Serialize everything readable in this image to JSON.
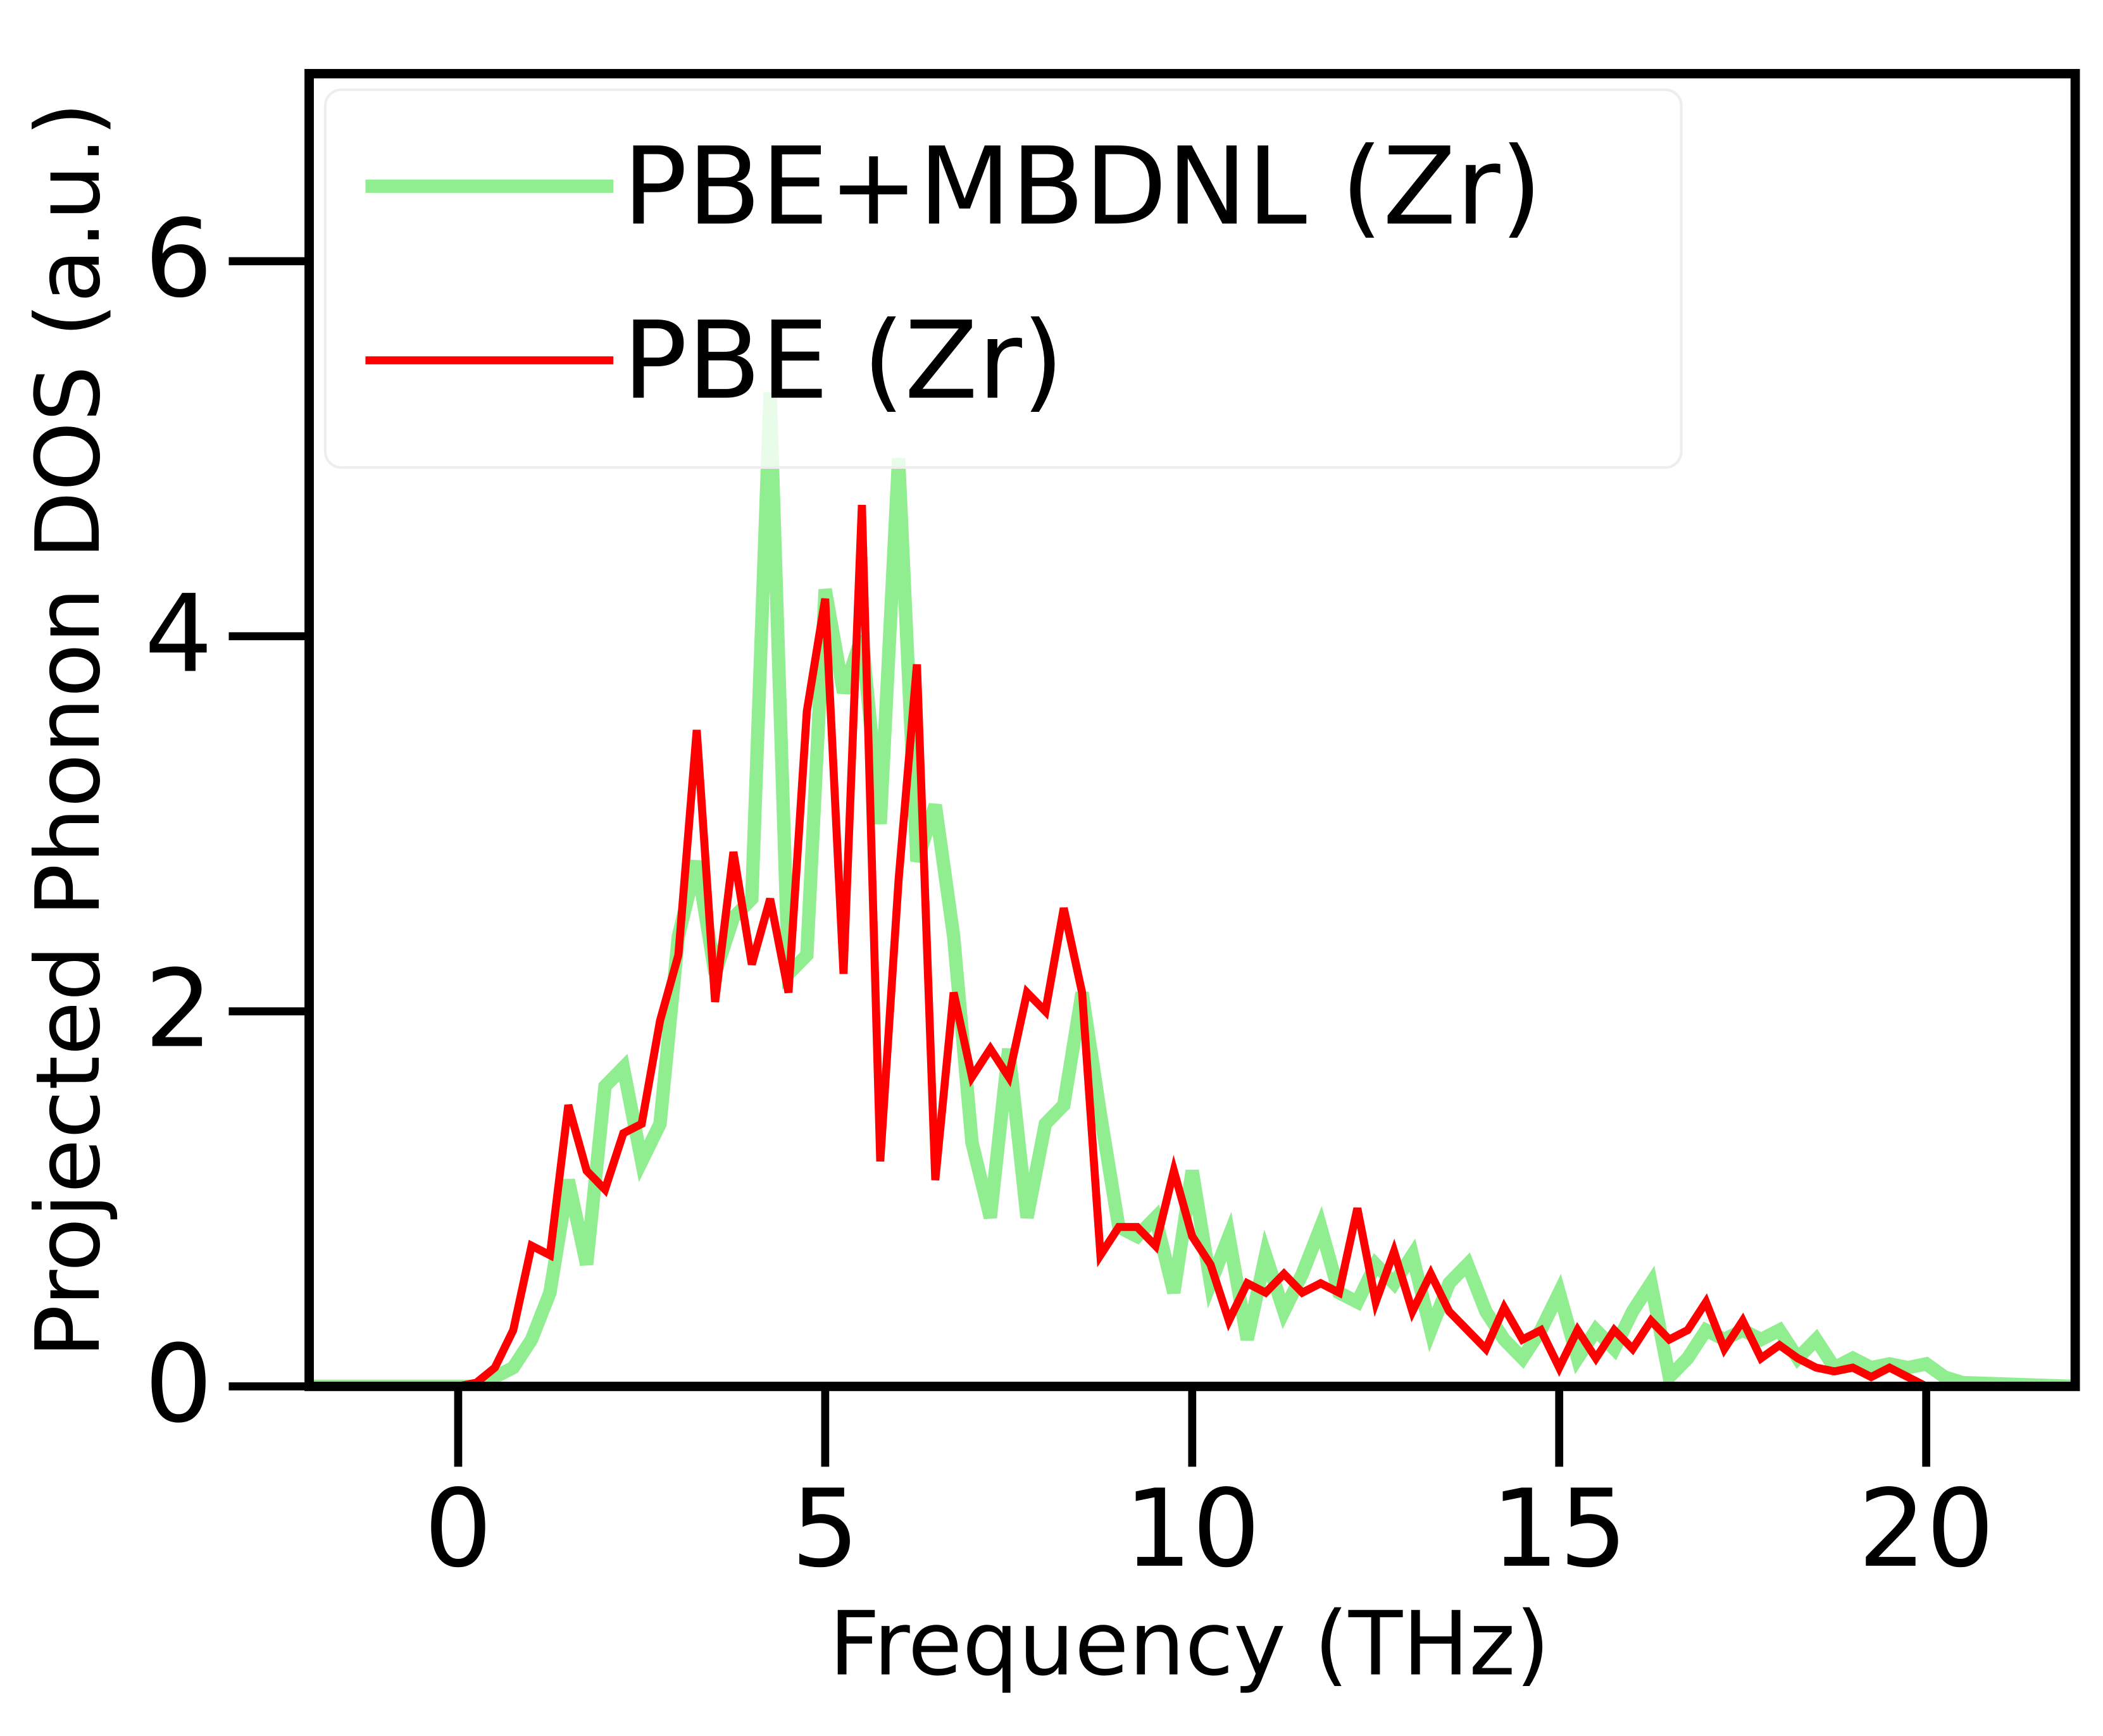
{
  "chart_data": {
    "type": "line",
    "xlabel": "Frequency (THz)",
    "ylabel": "Projected Phonon DOS (a.u.)",
    "xlim": [
      -2.03,
      22.03
    ],
    "ylim": [
      0,
      7
    ],
    "xticks": [
      0,
      5,
      10,
      15,
      20
    ],
    "yticks": [
      0,
      2,
      4,
      6
    ],
    "legend": "upper left",
    "x": [
      -2,
      0,
      0.25,
      0.5,
      0.75,
      1,
      1.25,
      1.5,
      1.75,
      2,
      2.25,
      2.5,
      2.75,
      3,
      3.25,
      3.5,
      3.75,
      4,
      4.25,
      4.5,
      4.75,
      5,
      5.25,
      5.5,
      5.75,
      6,
      6.25,
      6.5,
      6.75,
      7,
      7.25,
      7.5,
      7.75,
      8,
      8.25,
      8.5,
      8.75,
      9,
      9.25,
      9.5,
      9.75,
      10,
      10.25,
      10.5,
      10.75,
      11,
      11.25,
      11.5,
      11.75,
      12,
      12.25,
      12.5,
      12.75,
      13,
      13.25,
      13.5,
      13.75,
      14,
      14.25,
      14.5,
      14.75,
      15,
      15.25,
      15.5,
      15.75,
      16,
      16.25,
      16.5,
      16.75,
      17,
      17.25,
      17.5,
      17.75,
      18,
      18.25,
      18.5,
      18.75,
      19,
      19.25,
      19.5,
      19.75,
      20,
      20.25,
      20.5,
      22
    ],
    "series": [
      {
        "name": "PBE+MBDNL (Zr)",
        "color": "#90ee90",
        "width": 10,
        "values": [
          0,
          0,
          0,
          0.05,
          0.1,
          0.25,
          0.5,
          1.1,
          0.65,
          1.6,
          1.7,
          1.2,
          1.4,
          2.4,
          2.8,
          2.2,
          2.5,
          2.6,
          5.3,
          2.2,
          2.3,
          4.25,
          3.7,
          4.0,
          3.0,
          4.95,
          2.8,
          3.1,
          2.4,
          1.3,
          0.9,
          1.8,
          0.9,
          1.4,
          1.5,
          2.1,
          1.45,
          0.85,
          0.8,
          0.9,
          0.5,
          1.15,
          0.55,
          0.8,
          0.25,
          0.7,
          0.4,
          0.6,
          0.85,
          0.5,
          0.45,
          0.65,
          0.55,
          0.7,
          0.3,
          0.55,
          0.65,
          0.4,
          0.25,
          0.15,
          0.3,
          0.5,
          0.15,
          0.3,
          0.2,
          0.4,
          0.55,
          0.05,
          0.15,
          0.3,
          0.25,
          0.3,
          0.25,
          0.3,
          0.15,
          0.25,
          0.1,
          0.15,
          0.1,
          0.12,
          0.1,
          0.12,
          0.05,
          0.02,
          0
        ]
      },
      {
        "name": "PBE (Zr)",
        "color": "#ff0000",
        "width": 6,
        "values": [
          0,
          0,
          0.02,
          0.1,
          0.3,
          0.75,
          0.7,
          1.5,
          1.15,
          1.05,
          1.35,
          1.4,
          1.95,
          2.3,
          3.5,
          2.05,
          2.85,
          2.25,
          2.6,
          2.1,
          3.6,
          4.2,
          2.2,
          4.7,
          1.2,
          2.7,
          3.85,
          1.1,
          2.1,
          1.65,
          1.8,
          1.65,
          2.1,
          2.0,
          2.55,
          2.1,
          0.7,
          0.85,
          0.85,
          0.75,
          1.15,
          0.8,
          0.65,
          0.35,
          0.55,
          0.5,
          0.6,
          0.5,
          0.55,
          0.5,
          0.95,
          0.45,
          0.72,
          0.4,
          0.6,
          0.4,
          0.3,
          0.2,
          0.42,
          0.25,
          0.3,
          0.1,
          0.3,
          0.15,
          0.3,
          0.2,
          0.35,
          0.25,
          0.3,
          0.45,
          0.2,
          0.35,
          0.15,
          0.22,
          0.15,
          0.1,
          0.08,
          0.1,
          0.05,
          0.1,
          0.05,
          0,
          0,
          0,
          0
        ]
      }
    ]
  }
}
